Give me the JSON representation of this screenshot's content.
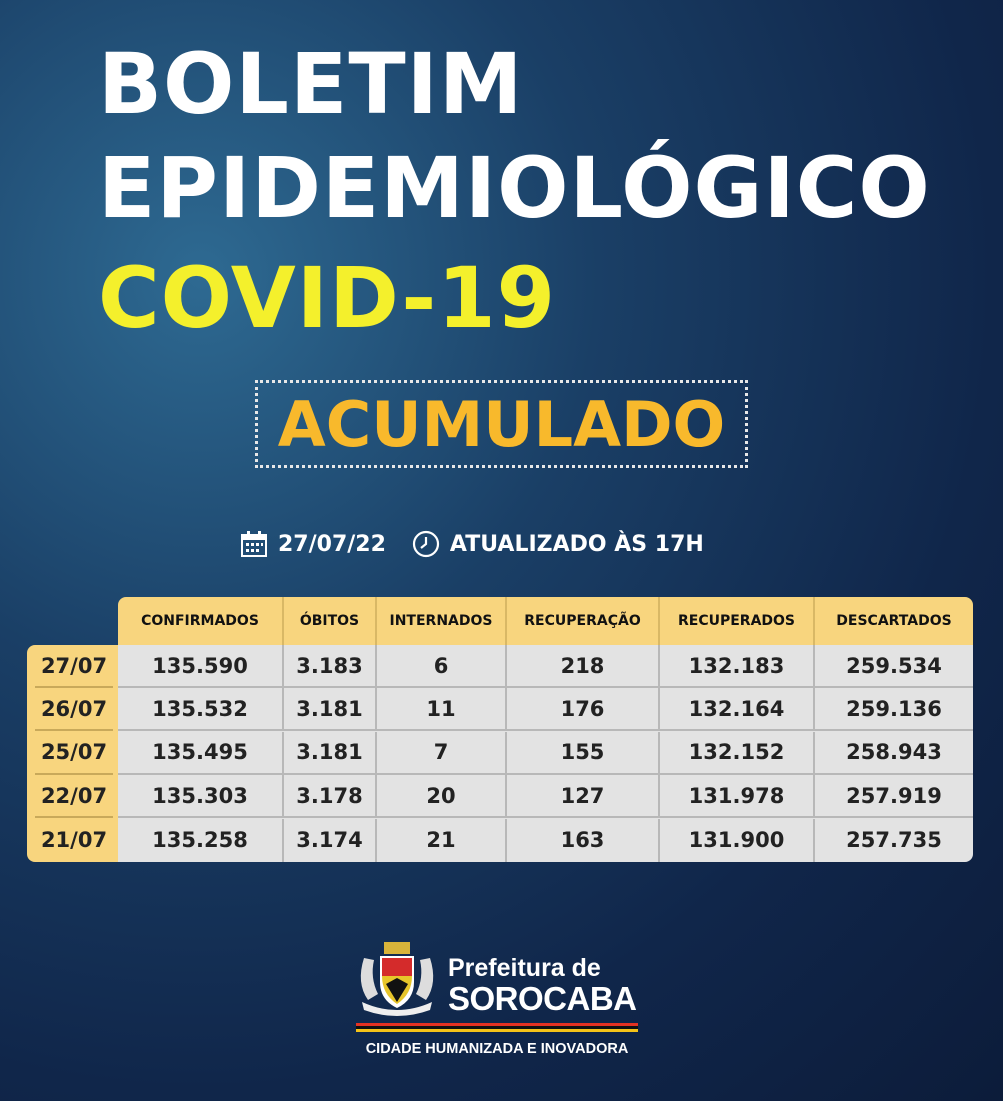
{
  "title": {
    "line1": "BOLETIM",
    "line2": "EPIDEMIOLÓGICO",
    "line3": "COVID-19",
    "badge": "ACUMULADO"
  },
  "info": {
    "date": "27/07/22",
    "updated": "ATUALIZADO ÀS 17H",
    "date_icon": "calendar-icon",
    "time_icon": "clock-icon"
  },
  "table": {
    "columns": [
      "CONFIRMADOS",
      "ÓBITOS",
      "INTERNADOS",
      "RECUPERAÇÃO",
      "RECUPERADOS",
      "DESCARTADOS"
    ],
    "rows": [
      {
        "date": "27/07",
        "values": [
          "135.590",
          "3.183",
          "6",
          "218",
          "132.183",
          "259.534"
        ]
      },
      {
        "date": "26/07",
        "values": [
          "135.532",
          "3.181",
          "11",
          "176",
          "132.164",
          "259.136"
        ]
      },
      {
        "date": "25/07",
        "values": [
          "135.495",
          "3.181",
          "7",
          "155",
          "132.152",
          "258.943"
        ]
      },
      {
        "date": "22/07",
        "values": [
          "135.303",
          "3.178",
          "20",
          "127",
          "131.978",
          "257.919"
        ]
      },
      {
        "date": "21/07",
        "values": [
          "135.258",
          "3.174",
          "21",
          "163",
          "131.900",
          "257.735"
        ]
      }
    ]
  },
  "logo": {
    "line1": "Prefeitura de",
    "line2": "SOROCABA",
    "slogan": "CIDADE HUMANIZADA E INOVADORA"
  },
  "colors": {
    "yellow_title": "#f4f02c",
    "badge_text": "#f8b92c",
    "table_header": "#f8d57e",
    "table_body": "#e3e3e3"
  }
}
